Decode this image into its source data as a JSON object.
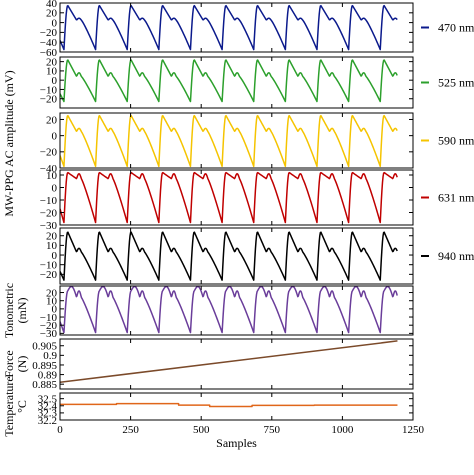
{
  "chart_data": {
    "type": "line",
    "x_axis": {
      "label": "Samples",
      "range": [
        0,
        1250
      ],
      "ticks": [
        0,
        250,
        500,
        750,
        1000,
        1250
      ],
      "tick_labels": [
        "0",
        "250",
        "500",
        "750",
        "1000",
        "1250"
      ]
    },
    "shared_ylabel": "MW-PPG AC amplitude (mV)",
    "panels": [
      {
        "id": "ppg470",
        "kind": "ppg",
        "color": "#0b1a8c",
        "legend": "470 nm",
        "ylim": [
          -60,
          40
        ],
        "yticks": [
          40,
          20,
          0,
          -20,
          -40,
          -60
        ],
        "ytick_labels": [
          "40",
          "20",
          "0",
          "−20",
          "−40",
          "−60"
        ],
        "samples": 1195,
        "period": 112,
        "phase": 14,
        "peak": 35,
        "trough": -55,
        "dicrotic": 5,
        "bump": 0.0
      },
      {
        "id": "ppg525",
        "kind": "ppg",
        "color": "#2ca02c",
        "legend": "525 nm",
        "ylim": [
          -30,
          25
        ],
        "yticks": [
          20,
          10,
          0,
          -10,
          -20
        ],
        "ytick_labels": [
          "20",
          "10",
          "0",
          "−10",
          "−20"
        ],
        "samples": 1195,
        "period": 112,
        "phase": 14,
        "peak": 22,
        "trough": -23,
        "dicrotic": 4,
        "bump": 0.0
      },
      {
        "id": "ppg590",
        "kind": "ppg",
        "color": "#f5c400",
        "legend": "590 nm",
        "ylim": [
          -40,
          28
        ],
        "yticks": [
          20,
          0,
          -20,
          -40
        ],
        "ytick_labels": [
          "20",
          "0",
          "−20",
          "−40"
        ],
        "samples": 1195,
        "period": 112,
        "phase": 14,
        "peak": 25,
        "trough": -38,
        "dicrotic": 5,
        "bump": 0.0
      },
      {
        "id": "ppg631",
        "kind": "ppg",
        "color": "#c00000",
        "legend": "631 nm",
        "ylim": [
          -30,
          14
        ],
        "yticks": [
          10,
          0,
          -10,
          -20,
          -30
        ],
        "ytick_labels": [
          "10",
          "0",
          "−10",
          "−20",
          "−30"
        ],
        "samples": 1195,
        "period": 112,
        "phase": 14,
        "peak": 12,
        "trough": -28,
        "dicrotic": 7,
        "bump": 0.0
      },
      {
        "id": "ppg940",
        "kind": "ppg",
        "color": "#000000",
        "legend": "940 nm",
        "ylim": [
          -30,
          28
        ],
        "yticks": [
          20,
          10,
          0,
          -10,
          -20
        ],
        "ytick_labels": [
          "20",
          "10",
          "0",
          "−10",
          "−20"
        ],
        "samples": 1195,
        "period": 112,
        "phase": 14,
        "peak": 24,
        "trough": -26,
        "dicrotic": 3,
        "bump": 0.0
      },
      {
        "id": "tono",
        "kind": "ppg",
        "color": "#6a3d9a",
        "ylabel": [
          "Tonometric",
          "(mN)"
        ],
        "ylim": [
          -32,
          28
        ],
        "yticks": [
          20,
          10,
          0,
          -10,
          -20,
          -30
        ],
        "ytick_labels": [
          "20",
          "10",
          "0",
          "−10",
          "−20",
          "−30"
        ],
        "samples": 1195,
        "period": 112,
        "phase": 14,
        "peak": 22,
        "trough": -29,
        "dicrotic": 14,
        "bump": 1.0
      },
      {
        "id": "force",
        "kind": "linear",
        "color": "#7b4a2a",
        "ylabel": [
          "Force",
          "(N)"
        ],
        "ylim": [
          0.8825,
          0.9085
        ],
        "yticks": [
          0.905,
          0.9,
          0.895,
          0.89,
          0.885
        ],
        "ytick_labels": [
          "0.905",
          "0.9",
          "0.895",
          "0.89",
          "0.885"
        ],
        "x": [
          0,
          1195
        ],
        "y": [
          0.886,
          0.9075
        ]
      },
      {
        "id": "temp",
        "kind": "step",
        "color": "#e0661a",
        "ylabel": [
          "Temperature",
          "°C"
        ],
        "ylim": [
          32.2,
          32.58
        ],
        "yticks": [
          32.5,
          32.4,
          32.3,
          32.2
        ],
        "ytick_labels": [
          "32.5",
          "32.4",
          "32.3",
          "32.2"
        ],
        "x": [
          0,
          200,
          420,
          530,
          680,
          900,
          1195
        ],
        "y": [
          32.42,
          32.43,
          32.41,
          32.39,
          32.405,
          32.41,
          32.4
        ]
      }
    ]
  }
}
